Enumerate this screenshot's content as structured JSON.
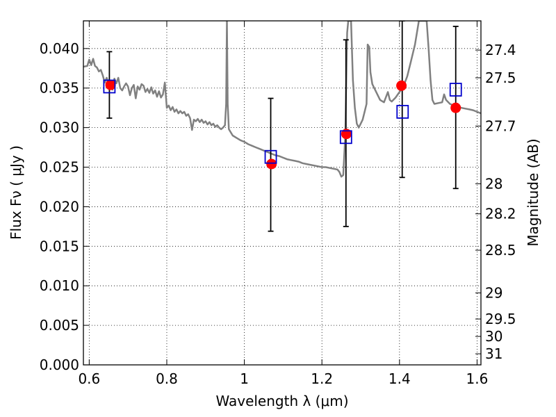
{
  "chart_data": {
    "type": "scatter",
    "xlabel": "Wavelength  λ (μm)",
    "ylabel": "Flux  Fν  ( μJy )",
    "ylabel2": "Magnitude (AB)",
    "xlim": [
      0.585,
      1.61
    ],
    "ylim": [
      0.0,
      0.0435
    ],
    "grid": true,
    "x_ticks": [
      {
        "value": 0.6,
        "label": "0.6"
      },
      {
        "value": 0.8,
        "label": "0.8"
      },
      {
        "value": 1.0,
        "label": "1"
      },
      {
        "value": 1.2,
        "label": "1.2"
      },
      {
        "value": 1.4,
        "label": "1.4"
      },
      {
        "value": 1.6,
        "label": "1.6"
      }
    ],
    "y_ticks": [
      {
        "value": 0.0,
        "label": "0.000"
      },
      {
        "value": 0.005,
        "label": "0.005"
      },
      {
        "value": 0.01,
        "label": "0.010"
      },
      {
        "value": 0.015,
        "label": "0.015"
      },
      {
        "value": 0.02,
        "label": "0.020"
      },
      {
        "value": 0.025,
        "label": "0.025"
      },
      {
        "value": 0.03,
        "label": "0.030"
      },
      {
        "value": 0.035,
        "label": "0.035"
      },
      {
        "value": 0.04,
        "label": "0.040"
      }
    ],
    "right_ticks": [
      {
        "label": "27.4",
        "flux": 0.0398
      },
      {
        "label": "27.5",
        "flux": 0.0363
      },
      {
        "label": "27.7",
        "flux": 0.0302
      },
      {
        "label": "28",
        "flux": 0.0229
      },
      {
        "label": "28.2",
        "flux": 0.0191
      },
      {
        "label": "28.5",
        "flux": 0.0145
      },
      {
        "label": "29",
        "flux": 0.0091
      },
      {
        "label": "29.5",
        "flux": 0.0058
      },
      {
        "label": "30",
        "flux": 0.0036
      },
      {
        "label": "31",
        "flux": 0.0014
      }
    ],
    "colors": {
      "spectrum": "#808080",
      "observed": "#ff0000",
      "model": "#0000cc",
      "errorbar": "#000000"
    },
    "series": [
      {
        "kind": "spectrum",
        "points": [
          [
            0.585,
            0.0377
          ],
          [
            0.595,
            0.0378
          ],
          [
            0.6,
            0.0386
          ],
          [
            0.605,
            0.0379
          ],
          [
            0.61,
            0.0387
          ],
          [
            0.615,
            0.0378
          ],
          [
            0.62,
            0.0376
          ],
          [
            0.625,
            0.0371
          ],
          [
            0.63,
            0.0373
          ],
          [
            0.635,
            0.0366
          ],
          [
            0.64,
            0.0357
          ],
          [
            0.645,
            0.0363
          ],
          [
            0.65,
            0.0356
          ],
          [
            0.655,
            0.0352
          ],
          [
            0.66,
            0.0348
          ],
          [
            0.665,
            0.0362
          ],
          [
            0.67,
            0.0356
          ],
          [
            0.675,
            0.0363
          ],
          [
            0.68,
            0.035
          ],
          [
            0.685,
            0.0347
          ],
          [
            0.69,
            0.0352
          ],
          [
            0.695,
            0.0356
          ],
          [
            0.7,
            0.0352
          ],
          [
            0.705,
            0.0341
          ],
          [
            0.71,
            0.035
          ],
          [
            0.715,
            0.0354
          ],
          [
            0.72,
            0.0337
          ],
          [
            0.725,
            0.0352
          ],
          [
            0.73,
            0.0348
          ],
          [
            0.735,
            0.0355
          ],
          [
            0.74,
            0.0353
          ],
          [
            0.745,
            0.0345
          ],
          [
            0.75,
            0.0349
          ],
          [
            0.755,
            0.0344
          ],
          [
            0.76,
            0.0351
          ],
          [
            0.765,
            0.0343
          ],
          [
            0.77,
            0.0347
          ],
          [
            0.775,
            0.0339
          ],
          [
            0.78,
            0.0346
          ],
          [
            0.785,
            0.0338
          ],
          [
            0.79,
            0.0342
          ],
          [
            0.795,
            0.0357
          ],
          [
            0.8,
            0.0325
          ],
          [
            0.805,
            0.0328
          ],
          [
            0.81,
            0.0322
          ],
          [
            0.815,
            0.0326
          ],
          [
            0.82,
            0.032
          ],
          [
            0.825,
            0.0323
          ],
          [
            0.83,
            0.0318
          ],
          [
            0.835,
            0.0321
          ],
          [
            0.84,
            0.0318
          ],
          [
            0.845,
            0.032
          ],
          [
            0.85,
            0.0315
          ],
          [
            0.855,
            0.0317
          ],
          [
            0.86,
            0.0312
          ],
          [
            0.865,
            0.0297
          ],
          [
            0.87,
            0.031
          ],
          [
            0.875,
            0.0308
          ],
          [
            0.88,
            0.0311
          ],
          [
            0.885,
            0.0307
          ],
          [
            0.89,
            0.031
          ],
          [
            0.895,
            0.0306
          ],
          [
            0.9,
            0.0308
          ],
          [
            0.905,
            0.0304
          ],
          [
            0.91,
            0.0307
          ],
          [
            0.915,
            0.0303
          ],
          [
            0.92,
            0.0305
          ],
          [
            0.925,
            0.0301
          ],
          [
            0.93,
            0.0303
          ],
          [
            0.935,
            0.03
          ],
          [
            0.94,
            0.0298
          ],
          [
            0.945,
            0.03
          ],
          [
            0.95,
            0.0303
          ],
          [
            0.953,
            0.033
          ],
          [
            0.955,
            0.0435
          ],
          [
            0.957,
            0.033
          ],
          [
            0.96,
            0.0298
          ],
          [
            0.97,
            0.029
          ],
          [
            0.98,
            0.0287
          ],
          [
            0.99,
            0.0284
          ],
          [
            1.0,
            0.0282
          ],
          [
            1.01,
            0.0279
          ],
          [
            1.02,
            0.0277
          ],
          [
            1.03,
            0.0275
          ],
          [
            1.04,
            0.0273
          ],
          [
            1.05,
            0.0271
          ],
          [
            1.06,
            0.0269
          ],
          [
            1.07,
            0.0267
          ],
          [
            1.08,
            0.0265
          ],
          [
            1.09,
            0.0264
          ],
          [
            1.1,
            0.0262
          ],
          [
            1.11,
            0.026
          ],
          [
            1.12,
            0.0259
          ],
          [
            1.13,
            0.0258
          ],
          [
            1.14,
            0.0257
          ],
          [
            1.15,
            0.0255
          ],
          [
            1.16,
            0.0254
          ],
          [
            1.17,
            0.0253
          ],
          [
            1.18,
            0.0252
          ],
          [
            1.19,
            0.0251
          ],
          [
            1.2,
            0.025
          ],
          [
            1.21,
            0.025
          ],
          [
            1.22,
            0.0249
          ],
          [
            1.23,
            0.0248
          ],
          [
            1.24,
            0.0247
          ],
          [
            1.245,
            0.0244
          ],
          [
            1.25,
            0.0238
          ],
          [
            1.255,
            0.024
          ],
          [
            1.26,
            0.0288
          ],
          [
            1.262,
            0.034
          ],
          [
            1.265,
            0.042
          ],
          [
            1.268,
            0.0435
          ],
          [
            1.275,
            0.0435
          ],
          [
            1.28,
            0.036
          ],
          [
            1.285,
            0.0325
          ],
          [
            1.29,
            0.0305
          ],
          [
            1.295,
            0.03
          ],
          [
            1.3,
            0.0305
          ],
          [
            1.305,
            0.031
          ],
          [
            1.31,
            0.032
          ],
          [
            1.315,
            0.033
          ],
          [
            1.318,
            0.0405
          ],
          [
            1.322,
            0.0402
          ],
          [
            1.325,
            0.037
          ],
          [
            1.33,
            0.0355
          ],
          [
            1.34,
            0.0345
          ],
          [
            1.35,
            0.0335
          ],
          [
            1.36,
            0.0332
          ],
          [
            1.37,
            0.0345
          ],
          [
            1.375,
            0.0335
          ],
          [
            1.38,
            0.0333
          ],
          [
            1.39,
            0.0338
          ],
          [
            1.4,
            0.0345
          ],
          [
            1.41,
            0.0352
          ],
          [
            1.42,
            0.0365
          ],
          [
            1.43,
            0.0385
          ],
          [
            1.44,
            0.0405
          ],
          [
            1.445,
            0.042
          ],
          [
            1.45,
            0.0435
          ],
          [
            1.47,
            0.0435
          ],
          [
            1.475,
            0.04
          ],
          [
            1.48,
            0.036
          ],
          [
            1.485,
            0.0335
          ],
          [
            1.49,
            0.033
          ],
          [
            1.5,
            0.0331
          ],
          [
            1.51,
            0.0332
          ],
          [
            1.515,
            0.0342
          ],
          [
            1.52,
            0.0335
          ],
          [
            1.53,
            0.033
          ],
          [
            1.54,
            0.0328
          ],
          [
            1.55,
            0.0326
          ],
          [
            1.56,
            0.0325
          ],
          [
            1.57,
            0.0324
          ],
          [
            1.58,
            0.0323
          ],
          [
            1.59,
            0.0322
          ],
          [
            1.6,
            0.032
          ],
          [
            1.61,
            0.0318
          ]
        ]
      },
      {
        "kind": "errorbars",
        "points": [
          {
            "x": 0.652,
            "low": 0.0312,
            "high": 0.0396
          },
          {
            "x": 1.068,
            "low": 0.0169,
            "high": 0.0337
          },
          {
            "x": 1.262,
            "low": 0.0175,
            "high": 0.0411
          },
          {
            "x": 1.407,
            "low": 0.0237,
            "high": 0.0435
          },
          {
            "x": 1.545,
            "low": 0.0223,
            "high": 0.0428
          }
        ]
      },
      {
        "kind": "observed",
        "points": [
          {
            "x": 0.655,
            "y": 0.0354
          },
          {
            "x": 1.07,
            "y": 0.0254
          },
          {
            "x": 1.263,
            "y": 0.0292
          },
          {
            "x": 1.405,
            "y": 0.0353
          },
          {
            "x": 1.545,
            "y": 0.0325
          }
        ]
      },
      {
        "kind": "model",
        "points": [
          {
            "x": 0.652,
            "y": 0.0352
          },
          {
            "x": 1.068,
            "y": 0.0263
          },
          {
            "x": 1.262,
            "y": 0.0288
          },
          {
            "x": 1.408,
            "y": 0.032
          },
          {
            "x": 1.545,
            "y": 0.0348
          }
        ]
      }
    ]
  }
}
